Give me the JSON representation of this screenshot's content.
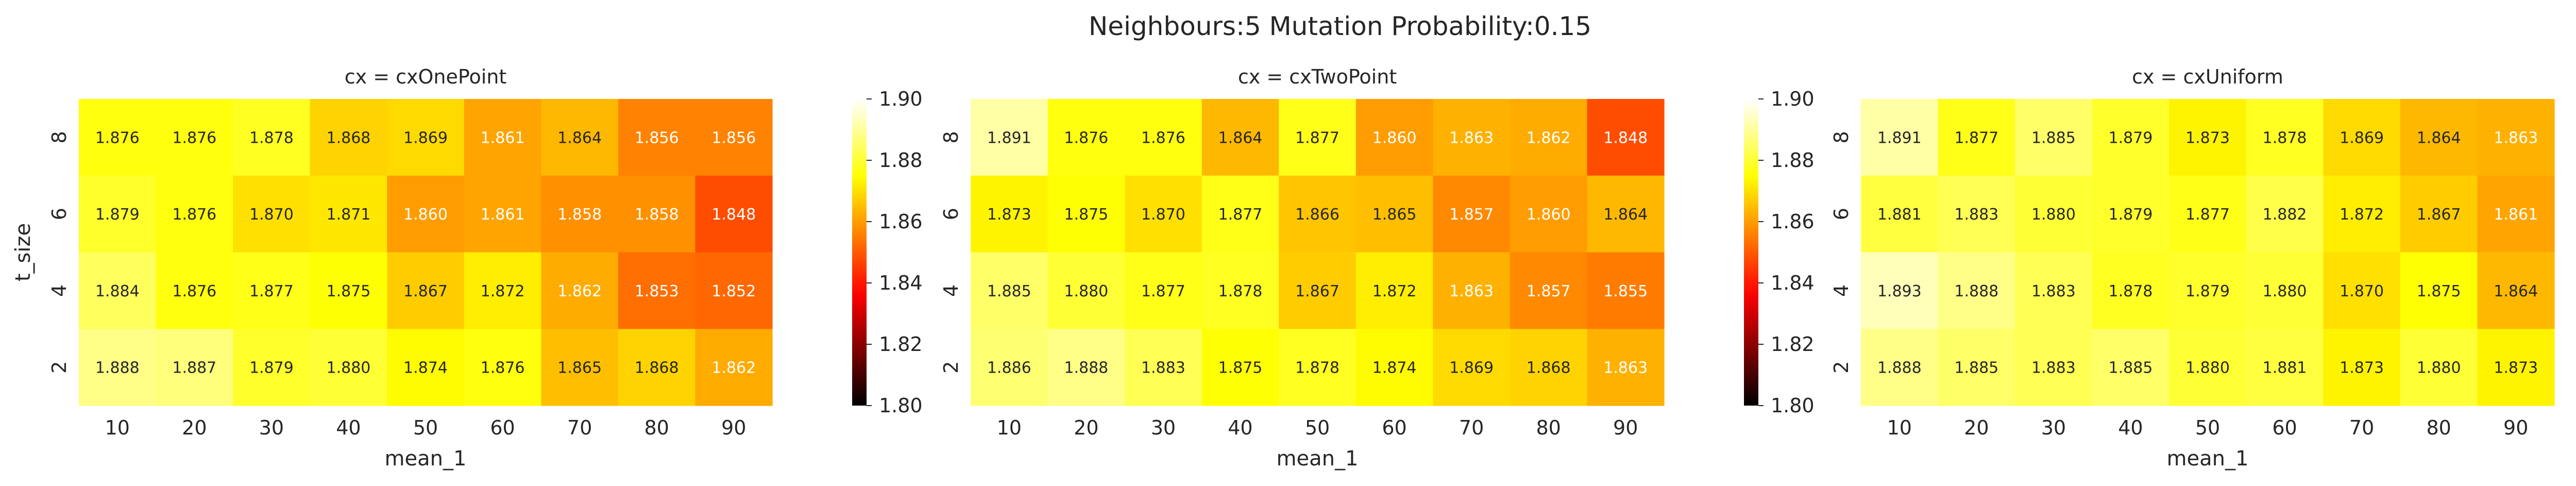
{
  "figure_title": "Neighbours:5 Mutation Probability:0.15",
  "chart_data": [
    {
      "type": "heatmap",
      "title": "cx = cxOnePoint",
      "xlabel": "mean_1",
      "ylabel": "t_size",
      "x": [
        "10",
        "20",
        "30",
        "40",
        "50",
        "60",
        "70",
        "80",
        "90"
      ],
      "y": [
        "8",
        "6",
        "4",
        "2"
      ],
      "values": [
        [
          1.876,
          1.876,
          1.878,
          1.868,
          1.869,
          1.861,
          1.864,
          1.856,
          1.856
        ],
        [
          1.879,
          1.876,
          1.87,
          1.871,
          1.86,
          1.861,
          1.858,
          1.858,
          1.848
        ],
        [
          1.884,
          1.876,
          1.877,
          1.875,
          1.867,
          1.872,
          1.862,
          1.853,
          1.852
        ],
        [
          1.888,
          1.887,
          1.879,
          1.88,
          1.874,
          1.876,
          1.865,
          1.868,
          1.862
        ]
      ],
      "colorbar": {
        "colormap": "hot",
        "vmin": 1.8,
        "vmax": 1.9,
        "ticks": [
          "1.80",
          "1.82",
          "1.84",
          "1.86",
          "1.88",
          "1.90"
        ]
      }
    },
    {
      "type": "heatmap",
      "title": "cx = cxTwoPoint",
      "xlabel": "mean_1",
      "ylabel": "",
      "x": [
        "10",
        "20",
        "30",
        "40",
        "50",
        "60",
        "70",
        "80",
        "90"
      ],
      "y": [
        "8",
        "6",
        "4",
        "2"
      ],
      "values": [
        [
          1.891,
          1.876,
          1.876,
          1.864,
          1.877,
          1.86,
          1.863,
          1.862,
          1.848
        ],
        [
          1.873,
          1.875,
          1.87,
          1.877,
          1.866,
          1.865,
          1.857,
          1.86,
          1.864
        ],
        [
          1.885,
          1.88,
          1.877,
          1.878,
          1.867,
          1.872,
          1.863,
          1.857,
          1.855
        ],
        [
          1.886,
          1.888,
          1.883,
          1.875,
          1.878,
          1.874,
          1.869,
          1.868,
          1.863
        ]
      ],
      "colorbar": {
        "colormap": "hot",
        "vmin": 1.8,
        "vmax": 1.9,
        "ticks": [
          "1.80",
          "1.82",
          "1.84",
          "1.86",
          "1.88",
          "1.90"
        ]
      }
    },
    {
      "type": "heatmap",
      "title": "cx = cxUniform",
      "xlabel": "mean_1",
      "ylabel": "",
      "x": [
        "10",
        "20",
        "30",
        "40",
        "50",
        "60",
        "70",
        "80",
        "90"
      ],
      "y": [
        "8",
        "6",
        "4",
        "2"
      ],
      "values": [
        [
          1.891,
          1.877,
          1.885,
          1.879,
          1.873,
          1.878,
          1.869,
          1.864,
          1.863
        ],
        [
          1.881,
          1.883,
          1.88,
          1.879,
          1.877,
          1.882,
          1.872,
          1.867,
          1.861
        ],
        [
          1.893,
          1.888,
          1.883,
          1.878,
          1.879,
          1.88,
          1.87,
          1.875,
          1.864
        ],
        [
          1.888,
          1.885,
          1.883,
          1.885,
          1.88,
          1.881,
          1.873,
          1.88,
          1.873
        ]
      ],
      "colorbar": {
        "colormap": "hot",
        "vmin": 1.8,
        "vmax": 1.9,
        "ticks": [
          "1.80",
          "1.82",
          "1.84",
          "1.86",
          "1.88",
          "1.90"
        ]
      }
    }
  ]
}
